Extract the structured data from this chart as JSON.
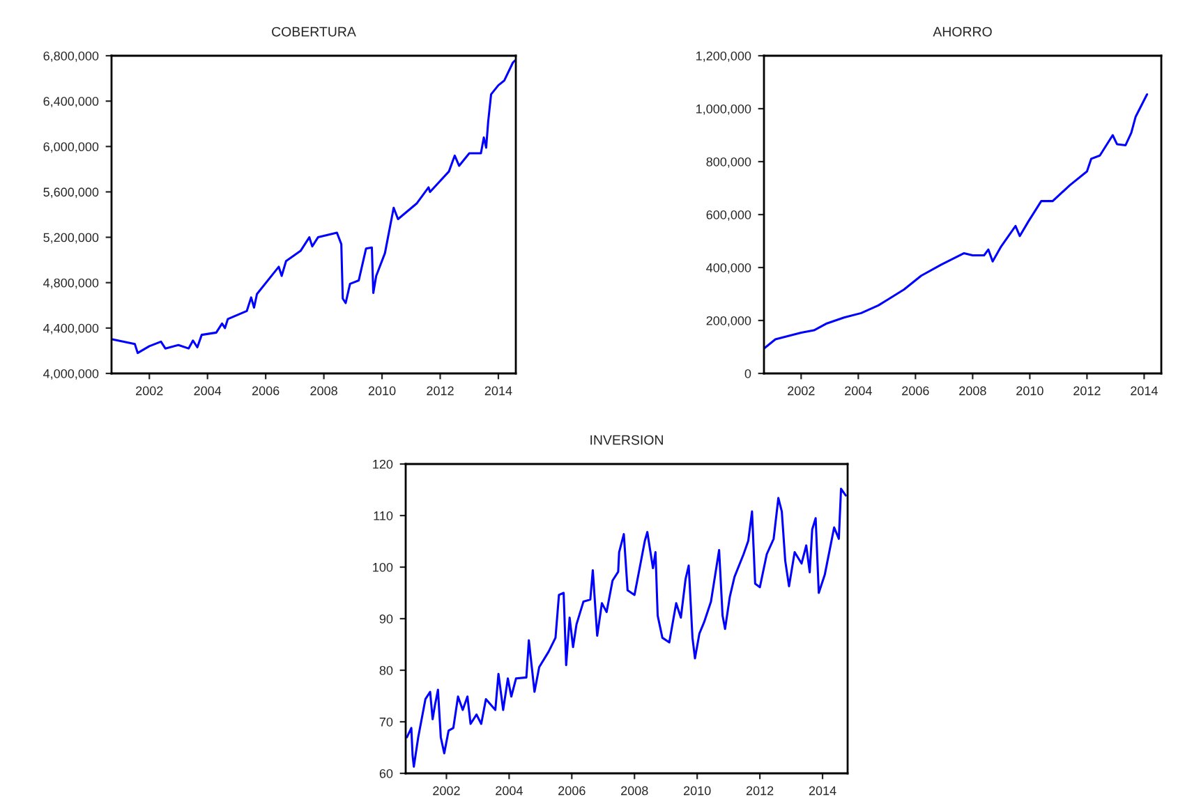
{
  "chart_data": [
    {
      "type": "line",
      "title": "COBERTURA",
      "xlim": [
        2000.7,
        2014.6
      ],
      "xticks": [
        2002,
        2004,
        2006,
        2008,
        2010,
        2012,
        2014
      ],
      "ylim": [
        4000000,
        6800000
      ],
      "yticks": [
        {
          "value": 4000000,
          "label": "4,000,000"
        },
        {
          "value": 4400000,
          "label": "4,400,000"
        },
        {
          "value": 4800000,
          "label": "4,800,000"
        },
        {
          "value": 5200000,
          "label": "5,200,000"
        },
        {
          "value": 5600000,
          "label": "5,600,000"
        },
        {
          "value": 6000000,
          "label": "6,000,000"
        },
        {
          "value": 6400000,
          "label": "6,400,000"
        },
        {
          "value": 6800000,
          "label": "6,800,000"
        }
      ],
      "grid": false,
      "legend": false,
      "series": [
        {
          "color": "#0000ff",
          "x": [
            2000.75,
            2001.5,
            2001.6,
            2002.0,
            2002.4,
            2002.55,
            2003.0,
            2003.35,
            2003.5,
            2003.65,
            2003.8,
            2004.3,
            2004.5,
            2004.6,
            2004.7,
            2005.35,
            2005.5,
            2005.6,
            2005.7,
            2006.45,
            2006.55,
            2006.7,
            2007.2,
            2007.5,
            2007.6,
            2007.8,
            2008.45,
            2008.6,
            2008.65,
            2008.75,
            2008.9,
            2009.2,
            2009.45,
            2009.65,
            2009.7,
            2009.8,
            2010.1,
            2010.4,
            2010.55,
            2011.2,
            2011.6,
            2011.65,
            2012.3,
            2012.5,
            2012.65,
            2013.0,
            2013.4,
            2013.5,
            2013.58,
            2013.65,
            2013.75,
            2014.0,
            2014.2,
            2014.5,
            2014.58
          ],
          "values": [
            4300000,
            4260000,
            4180000,
            4240000,
            4280000,
            4220000,
            4250000,
            4220000,
            4290000,
            4230000,
            4340000,
            4360000,
            4440000,
            4400000,
            4480000,
            4550000,
            4670000,
            4580000,
            4700000,
            4940000,
            4860000,
            4990000,
            5080000,
            5200000,
            5120000,
            5200000,
            5240000,
            5140000,
            4660000,
            4620000,
            4790000,
            4820000,
            5100000,
            5110000,
            4710000,
            4860000,
            5060000,
            5460000,
            5360000,
            5500000,
            5640000,
            5600000,
            5780000,
            5920000,
            5830000,
            5940000,
            5940000,
            6080000,
            5990000,
            6220000,
            6460000,
            6540000,
            6580000,
            6740000,
            6760000
          ]
        }
      ]
    },
    {
      "type": "line",
      "title": "AHORRO",
      "xlim": [
        2000.7,
        2014.6
      ],
      "xticks": [
        2002,
        2004,
        2006,
        2008,
        2010,
        2012,
        2014
      ],
      "ylim": [
        0,
        1200000
      ],
      "yticks": [
        0,
        {
          "value": 200000,
          "label": "200,000"
        },
        {
          "value": 400000,
          "label": "400,000"
        },
        {
          "value": 600000,
          "label": "600,000"
        },
        {
          "value": 800000,
          "label": "800,000"
        },
        {
          "value": 1000000,
          "label": "1,000,000"
        },
        {
          "value": 1200000,
          "label": "1,200,000"
        }
      ],
      "grid": false,
      "legend": false,
      "series": [
        {
          "color": "#0000ff",
          "x": [
            2000.7,
            2001.1,
            2002.0,
            2002.45,
            2002.9,
            2003.5,
            2004.1,
            2004.7,
            2005.6,
            2006.2,
            2006.9,
            2007.7,
            2008.0,
            2008.4,
            2008.55,
            2008.7,
            2009.0,
            2009.5,
            2009.65,
            2009.95,
            2010.4,
            2010.8,
            2011.4,
            2012.0,
            2012.15,
            2012.45,
            2012.9,
            2013.05,
            2013.35,
            2013.55,
            2013.7,
            2014.1
          ],
          "values": [
            94000,
            129000,
            154000,
            163000,
            189000,
            211000,
            228000,
            257000,
            317000,
            369000,
            411000,
            454000,
            446000,
            446000,
            468000,
            423000,
            480000,
            557000,
            519000,
            574000,
            651000,
            651000,
            711000,
            763000,
            811000,
            823000,
            900000,
            866000,
            862000,
            909000,
            969000,
            1054000
          ]
        }
      ]
    },
    {
      "type": "line",
      "title": "INVERSION",
      "xlim": [
        2000.7,
        2014.8
      ],
      "xticks": [
        2002,
        2004,
        2006,
        2008,
        2010,
        2012,
        2014
      ],
      "ylim": [
        60,
        120
      ],
      "yticks": [
        60,
        70,
        80,
        90,
        100,
        110,
        120
      ],
      "grid": false,
      "legend": false,
      "series": [
        {
          "color": "#0000ff",
          "x": [
            2000.74,
            2000.88,
            2000.92,
            2000.96,
            2001.1,
            2001.33,
            2001.48,
            2001.56,
            2001.63,
            2001.73,
            2001.82,
            2001.93,
            2002.07,
            2002.22,
            2002.37,
            2002.52,
            2002.67,
            2002.77,
            2002.96,
            2003.11,
            2003.26,
            2003.56,
            2003.66,
            2003.81,
            2003.96,
            2004.07,
            2004.22,
            2004.55,
            2004.63,
            2004.81,
            2004.96,
            2005.26,
            2005.48,
            2005.59,
            2005.74,
            2005.82,
            2005.93,
            2006.04,
            2006.15,
            2006.37,
            2006.59,
            2006.67,
            2006.81,
            2006.96,
            2007.11,
            2007.3,
            2007.48,
            2007.51,
            2007.66,
            2007.78,
            2008.0,
            2008.18,
            2008.33,
            2008.41,
            2008.52,
            2008.59,
            2008.67,
            2008.74,
            2008.89,
            2009.11,
            2009.33,
            2009.48,
            2009.63,
            2009.73,
            2009.85,
            2009.93,
            2010.07,
            2010.22,
            2010.44,
            2010.7,
            2010.81,
            2010.89,
            2011.04,
            2011.19,
            2011.48,
            2011.63,
            2011.75,
            2011.85,
            2012.0,
            2012.22,
            2012.44,
            2012.59,
            2012.7,
            2012.81,
            2012.93,
            2013.11,
            2013.33,
            2013.48,
            2013.59,
            2013.67,
            2013.78,
            2013.88,
            2014.07,
            2014.37,
            2014.52,
            2014.59,
            2014.74
          ],
          "values": [
            67.0,
            68.8,
            63.5,
            61.3,
            67.0,
            74.4,
            75.8,
            70.5,
            73.1,
            76.2,
            67.0,
            63.9,
            68.3,
            68.8,
            74.9,
            72.3,
            74.9,
            69.6,
            71.4,
            69.6,
            74.4,
            72.3,
            79.3,
            72.3,
            78.4,
            74.9,
            78.4,
            78.6,
            85.8,
            75.8,
            80.6,
            83.6,
            86.3,
            94.6,
            95.0,
            81.0,
            90.2,
            84.5,
            88.9,
            93.3,
            93.7,
            99.4,
            86.7,
            93.0,
            91.3,
            97.4,
            99.1,
            102.9,
            106.4,
            95.5,
            94.6,
            100.3,
            105.1,
            106.8,
            102.5,
            99.8,
            102.9,
            90.6,
            86.3,
            85.4,
            93.0,
            90.2,
            97.7,
            100.3,
            86.3,
            82.3,
            87.1,
            89.3,
            93.3,
            103.3,
            90.6,
            88.0,
            94.2,
            98.1,
            102.5,
            105.1,
            110.8,
            96.8,
            96.1,
            102.5,
            105.5,
            113.4,
            110.8,
            101.2,
            96.3,
            102.9,
            100.7,
            104.2,
            99.0,
            107.3,
            109.5,
            95.0,
            98.5,
            107.7,
            105.5,
            115.2,
            113.9
          ]
        }
      ]
    }
  ]
}
